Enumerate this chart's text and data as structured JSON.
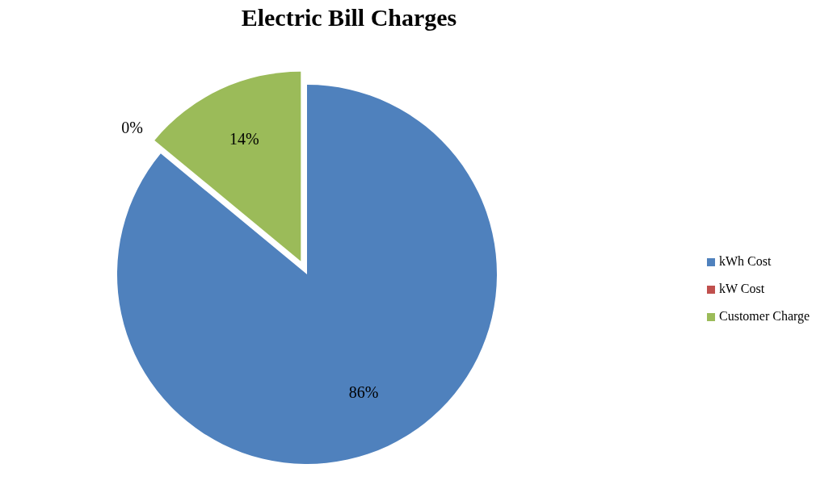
{
  "chart_data": {
    "type": "pie",
    "title": "Electric Bill Charges",
    "categories": [
      "kWh Cost",
      "kW Cost",
      "Customer Charge"
    ],
    "values": [
      86,
      0,
      14
    ],
    "colors": [
      "#4f81bd",
      "#c0504d",
      "#9bbb59"
    ],
    "value_labels": [
      "86%",
      "0%",
      "14%"
    ],
    "legend": "right"
  }
}
